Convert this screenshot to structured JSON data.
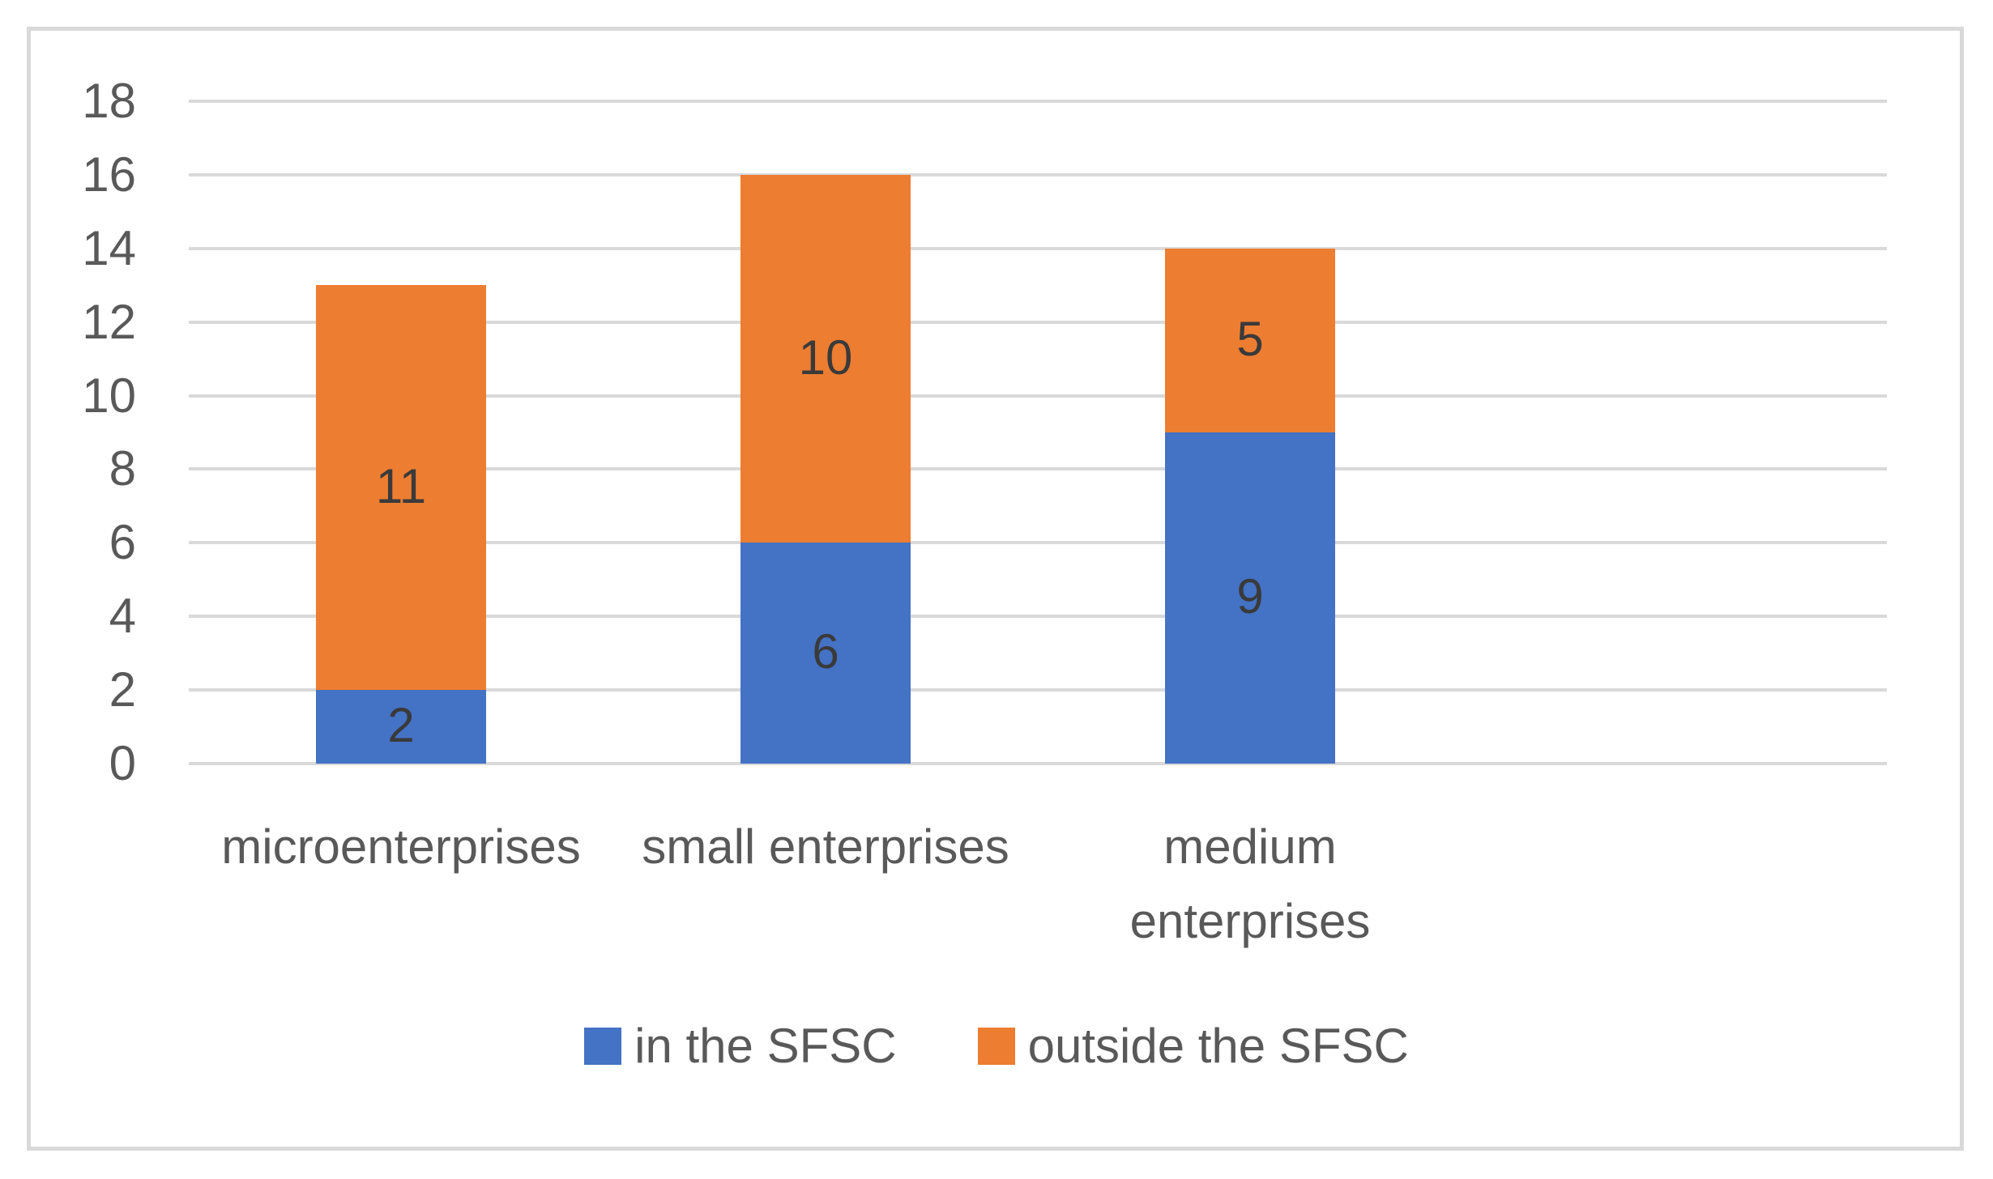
{
  "chart_data": {
    "type": "bar",
    "stacked": true,
    "title": "",
    "xlabel": "",
    "ylabel": "",
    "categories": [
      "microenterprises",
      "small enterprises",
      "medium enterprises"
    ],
    "series": [
      {
        "name": "in the SFSC",
        "color": "#4472C4",
        "values": [
          2,
          6,
          9
        ]
      },
      {
        "name": "outside the SFSC",
        "color": "#ED7D31",
        "values": [
          11,
          10,
          5
        ]
      }
    ],
    "stack_totals": [
      13,
      16,
      14
    ],
    "ylim": [
      0,
      18
    ],
    "ytick_step": 2,
    "yticks": [
      "0",
      "2",
      "4",
      "6",
      "8",
      "10",
      "12",
      "14",
      "16",
      "18"
    ],
    "grid": true,
    "gridline_color": "#D9D9D9",
    "border_color": "#D9D9D9",
    "axis_text_color": "#595959",
    "data_label_color": "#3A3A3A",
    "data_labels": true,
    "legend_position": "bottom",
    "category_slots": 4
  }
}
